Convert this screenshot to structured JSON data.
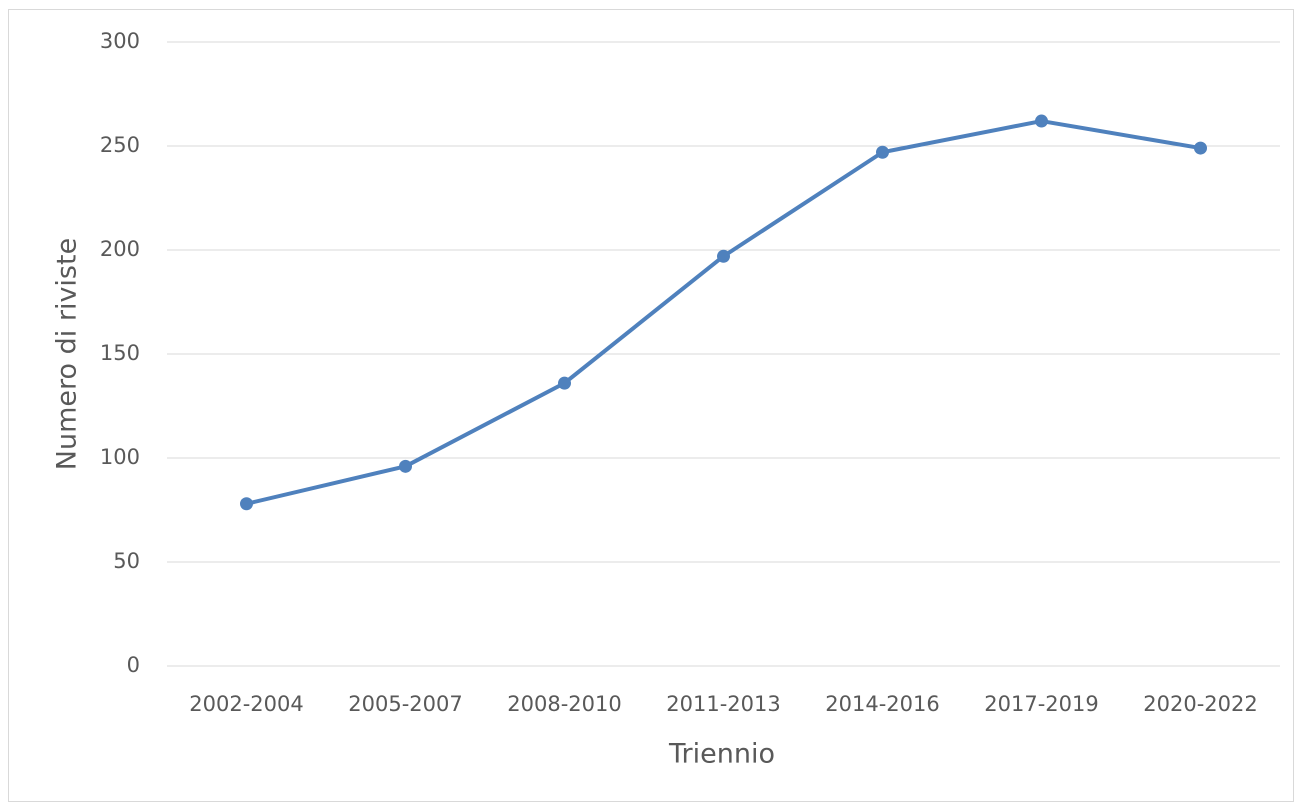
{
  "chart_data": {
    "type": "line",
    "x_label": "Triennio",
    "y_label": "Numero di riviste",
    "categories": [
      "2002-2004",
      "2005-2007",
      "2008-2010",
      "2011-2013",
      "2014-2016",
      "2017-2019",
      "2020-2022"
    ],
    "series": [
      {
        "name": "Numero di riviste",
        "color": "#4f81bd",
        "values": [
          78,
          96,
          136,
          197,
          247,
          262,
          249
        ]
      }
    ],
    "ylim": [
      0,
      300
    ],
    "yticks": [
      0,
      50,
      100,
      150,
      200,
      250,
      300
    ],
    "grid": true,
    "markers": true
  }
}
